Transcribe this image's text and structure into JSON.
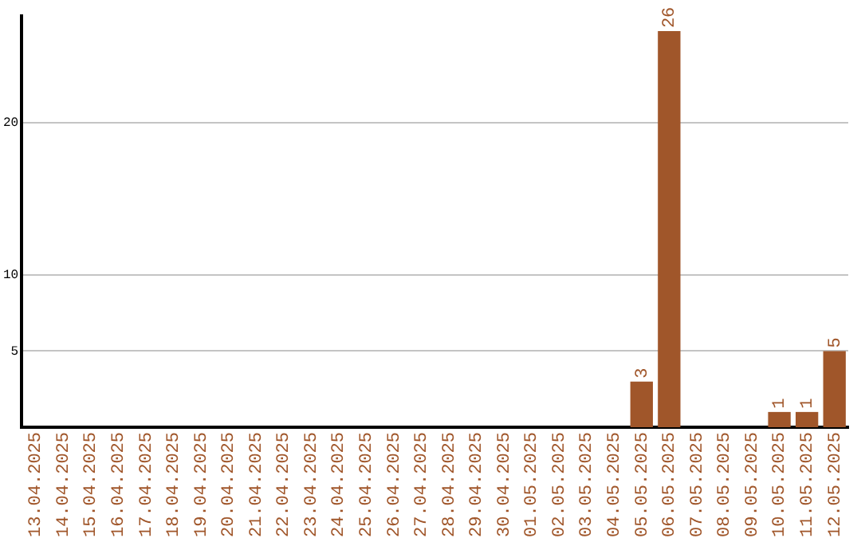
{
  "chart_data": {
    "type": "bar",
    "categories": [
      "13.04.2025",
      "14.04.2025",
      "15.04.2025",
      "16.04.2025",
      "17.04.2025",
      "18.04.2025",
      "19.04.2025",
      "20.04.2025",
      "21.04.2025",
      "22.04.2025",
      "23.04.2025",
      "24.04.2025",
      "25.04.2025",
      "26.04.2025",
      "27.04.2025",
      "28.04.2025",
      "29.04.2025",
      "30.04.2025",
      "01.05.2025",
      "02.05.2025",
      "03.05.2025",
      "04.05.2025",
      "05.05.2025",
      "06.05.2025",
      "07.05.2025",
      "08.05.2025",
      "09.05.2025",
      "10.05.2025",
      "11.05.2025",
      "12.05.2025"
    ],
    "values": [
      0,
      0,
      0,
      0,
      0,
      0,
      0,
      0,
      0,
      0,
      0,
      0,
      0,
      0,
      0,
      0,
      0,
      0,
      0,
      0,
      0,
      0,
      3,
      26,
      0,
      0,
      0,
      1,
      1,
      5
    ],
    "value_labels": [
      null,
      null,
      null,
      null,
      null,
      null,
      null,
      null,
      null,
      null,
      null,
      null,
      null,
      null,
      null,
      null,
      null,
      null,
      null,
      null,
      null,
      null,
      "3",
      "26",
      null,
      null,
      null,
      "1",
      "1",
      "5"
    ],
    "color": "#a0562a",
    "ylim": [
      0,
      27
    ],
    "yticks": [
      5,
      10,
      20
    ],
    "grid": "y",
    "legend": false
  }
}
